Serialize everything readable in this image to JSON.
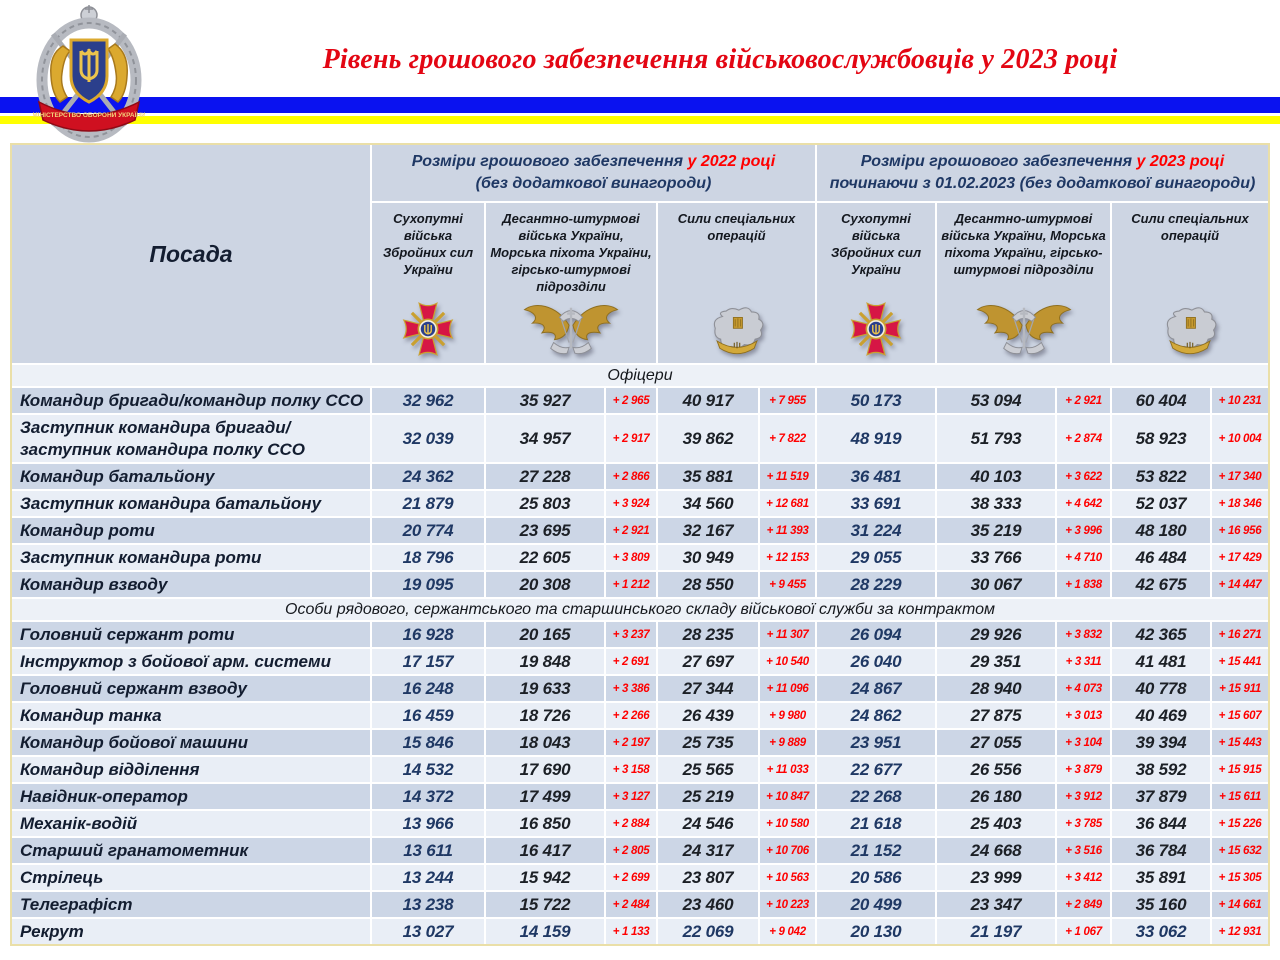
{
  "page": {
    "title": "Рівень грошового забезпечення військовослужбовців у 2023 році",
    "logo_ribbon_text": "МІНІСТЕРСТВО ОБОРОНИ УКРАЇНИ",
    "colors": {
      "title_red": "#e30613",
      "navy": "#1f3864",
      "delta_red": "#ff0000",
      "flag_blue": "#0a12f0",
      "flag_yellow": "#ffff00"
    }
  },
  "table": {
    "position_header": "Посада",
    "year_groups": [
      {
        "main": "Розміри грошового забезпечення",
        "year": "у 2022 році",
        "sub": "(без додаткової винагороди)"
      },
      {
        "main": "Розміри грошового забезпечення",
        "year": "у 2023 році",
        "sub": "починаючи з 01.02.2023 (без додаткової винагороди)"
      }
    ],
    "branch_headers": [
      {
        "label": "Сухопутні війська Збройних сил України",
        "icon": "ground-forces-emblem"
      },
      {
        "label": "Десантно-штурмові війська України, Морська піхота України, гірсько-штурмові підрозділи",
        "icon": "air-assault-emblem"
      },
      {
        "label": "Сили спеціальних операцій",
        "icon": "special-operations-emblem"
      }
    ],
    "sections": [
      {
        "title": "Офіцери",
        "rows": [
          {
            "position": "Командир бригади/командир полку ССО",
            "values": [
              "32 962",
              "35 927",
              "+ 2 965",
              "40 917",
              "+ 7 955",
              "50 173",
              "53 094",
              "+ 2 921",
              "60 404",
              "+ 10 231"
            ]
          },
          {
            "position": "Заступник командира бригади/заступник командира полку ССО",
            "values": [
              "32 039",
              "34 957",
              "+ 2 917",
              "39 862",
              "+ 7 822",
              "48 919",
              "51 793",
              "+ 2 874",
              "58 923",
              "+ 10 004"
            ]
          },
          {
            "position": "Командир батальйону",
            "values": [
              "24 362",
              "27 228",
              "+ 2 866",
              "35 881",
              "+ 11 519",
              "36 481",
              "40 103",
              "+ 3 622",
              "53 822",
              "+ 17 340"
            ]
          },
          {
            "position": "Заступник командира батальйону",
            "values": [
              "21 879",
              "25 803",
              "+ 3 924",
              "34 560",
              "+ 12 681",
              "33 691",
              "38 333",
              "+ 4 642",
              "52 037",
              "+ 18 346"
            ]
          },
          {
            "position": "Командир роти",
            "values": [
              "20 774",
              "23 695",
              "+ 2 921",
              "32 167",
              "+ 11 393",
              "31 224",
              "35 219",
              "+ 3 996",
              "48 180",
              "+ 16 956"
            ]
          },
          {
            "position": "Заступник командира роти",
            "values": [
              "18 796",
              "22 605",
              "+ 3 809",
              "30 949",
              "+ 12 153",
              "29 055",
              "33 766",
              "+ 4 710",
              "46 484",
              "+ 17 429"
            ]
          },
          {
            "position": "Командир взводу",
            "values": [
              "19 095",
              "20 308",
              "+ 1 212",
              "28 550",
              "+ 9 455",
              "28 229",
              "30 067",
              "+ 1 838",
              "42 675",
              "+ 14 447"
            ]
          }
        ]
      },
      {
        "title": "Особи рядового, сержантського та старшинського складу військової служби за контрактом",
        "rows": [
          {
            "position": "Головний сержант роти",
            "values": [
              "16 928",
              "20 165",
              "+ 3 237",
              "28 235",
              "+ 11 307",
              "26 094",
              "29 926",
              "+ 3 832",
              "42 365",
              "+ 16 271"
            ]
          },
          {
            "position": "Інструктор з бойової арм. системи",
            "values": [
              "17 157",
              "19 848",
              "+ 2 691",
              "27 697",
              "+ 10 540",
              "26 040",
              "29 351",
              "+ 3 311",
              "41 481",
              "+ 15 441"
            ]
          },
          {
            "position": "Головний сержант взводу",
            "values": [
              "16 248",
              "19 633",
              "+ 3 386",
              "27 344",
              "+ 11 096",
              "24 867",
              "28 940",
              "+ 4 073",
              "40 778",
              "+ 15 911"
            ]
          },
          {
            "position": "Командир танка",
            "values": [
              "16 459",
              "18 726",
              "+ 2 266",
              "26 439",
              "+ 9 980",
              "24 862",
              "27 875",
              "+ 3 013",
              "40 469",
              "+ 15 607"
            ]
          },
          {
            "position": "Командир бойової машини",
            "values": [
              "15 846",
              "18 043",
              "+ 2 197",
              "25 735",
              "+ 9 889",
              "23 951",
              "27 055",
              "+ 3 104",
              "39 394",
              "+ 15 443"
            ]
          },
          {
            "position": "Командир відділення",
            "values": [
              "14 532",
              "17 690",
              "+ 3 158",
              "25 565",
              "+ 11 033",
              "22 677",
              "26 556",
              "+ 3 879",
              "38 592",
              "+ 15 915"
            ]
          },
          {
            "position": "Навідник-оператор",
            "values": [
              "14 372",
              "17 499",
              "+ 3 127",
              "25 219",
              "+ 10 847",
              "22 268",
              "26 180",
              "+ 3 912",
              "37 879",
              "+ 15 611"
            ]
          },
          {
            "position": "Механік-водій",
            "values": [
              "13 966",
              "16 850",
              "+ 2 884",
              "24 546",
              "+ 10 580",
              "21 618",
              "25 403",
              "+ 3 785",
              "36 844",
              "+ 15 226"
            ]
          },
          {
            "position": "Старший гранатометник",
            "values": [
              "13 611",
              "16 417",
              "+ 2 805",
              "24 317",
              "+ 10 706",
              "21 152",
              "24 668",
              "+ 3 516",
              "36 784",
              "+ 15 632"
            ]
          },
          {
            "position": "Стрілець",
            "values": [
              "13 244",
              "15 942",
              "+ 2 699",
              "23 807",
              "+ 10 563",
              "20 586",
              "23 999",
              "+ 3 412",
              "35 891",
              "+ 15 305"
            ]
          },
          {
            "position": "Телеграфіст",
            "values": [
              "13 238",
              "15 722",
              "+ 2 484",
              "23 460",
              "+ 10 223",
              "20 499",
              "23 347",
              "+ 2 849",
              "35 160",
              "+ 14 661"
            ]
          },
          {
            "position": "Рекрут",
            "values": [
              "13 027",
              "14 159",
              "+ 1 133",
              "22 069",
              "+ 9 042",
              "20 130",
              "21 197",
              "+ 1 067",
              "33 062",
              "+ 12 931"
            ]
          }
        ]
      }
    ]
  }
}
